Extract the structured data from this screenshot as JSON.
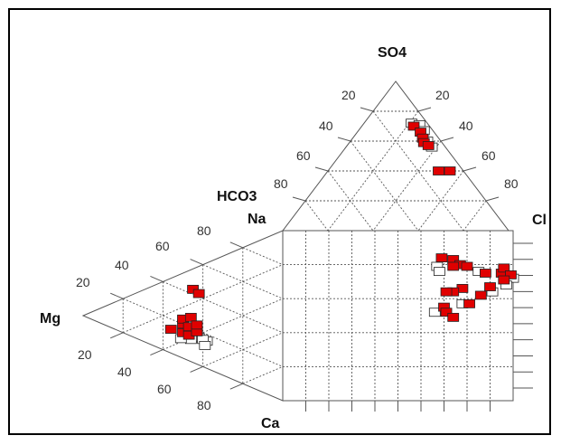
{
  "chart_data": {
    "type": "scatter",
    "subtype": "piper-diagram",
    "title": "",
    "axis_labels": {
      "top": "SO4",
      "upper_left": "HCO3",
      "mid_left": "Na",
      "right": "Cl",
      "left": "Mg",
      "bottom": "Ca"
    },
    "tick_labels": [
      "20",
      "40",
      "60",
      "80"
    ],
    "grid": true,
    "marker_colors": {
      "filled": "#e00000",
      "open": "#ffffff",
      "edge": "#222222"
    },
    "series": [
      {
        "marker": "filled-square",
        "points": [
          {
            "plot": "cation",
            "Ca": 30,
            "Mg": 56,
            "Na": 14
          },
          {
            "plot": "cation",
            "Ca": 30,
            "Mg": 50,
            "Na": 20
          },
          {
            "plot": "cation",
            "Ca": 35,
            "Mg": 50,
            "Na": 15
          },
          {
            "plot": "cation",
            "Ca": 27,
            "Mg": 50,
            "Na": 23
          },
          {
            "plot": "cation",
            "Ca": 38,
            "Mg": 47,
            "Na": 15
          },
          {
            "plot": "cation",
            "Ca": 33,
            "Mg": 47,
            "Na": 20
          },
          {
            "plot": "cation",
            "Ca": 28,
            "Mg": 46,
            "Na": 26
          },
          {
            "plot": "cation",
            "Ca": 38,
            "Mg": 43,
            "Na": 19
          },
          {
            "plot": "cation",
            "Ca": 34,
            "Mg": 43,
            "Na": 23
          },
          {
            "plot": "cation",
            "Ca": 12,
            "Mg": 45,
            "Na": 43
          },
          {
            "plot": "cation",
            "Ca": 16,
            "Mg": 42,
            "Na": 42
          },
          {
            "plot": "anion",
            "Cl": 23,
            "SO4": 70,
            "HCO3": 7
          },
          {
            "plot": "anion",
            "Cl": 28,
            "SO4": 66,
            "HCO3": 6
          },
          {
            "plot": "anion",
            "Cl": 31,
            "SO4": 62,
            "HCO3": 7
          },
          {
            "plot": "anion",
            "Cl": 33,
            "SO4": 59,
            "HCO3": 8
          },
          {
            "plot": "anion",
            "Cl": 36,
            "SO4": 57,
            "HCO3": 7
          },
          {
            "plot": "anion",
            "Cl": 54,
            "SO4": 40,
            "HCO3": 6
          },
          {
            "plot": "anion",
            "Cl": 49,
            "SO4": 40,
            "HCO3": 11
          },
          {
            "plot": "diamond",
            "Cl_SO4": 69,
            "Ca_Mg": 84
          },
          {
            "plot": "diamond",
            "Cl_SO4": 74,
            "Ca_Mg": 83
          },
          {
            "plot": "diamond",
            "Cl_SO4": 77,
            "Ca_Mg": 80
          },
          {
            "plot": "diamond",
            "Cl_SO4": 74,
            "Ca_Mg": 79
          },
          {
            "plot": "diamond",
            "Cl_SO4": 80,
            "Ca_Mg": 79
          },
          {
            "plot": "diamond",
            "Cl_SO4": 88,
            "Ca_Mg": 75
          },
          {
            "plot": "diamond",
            "Cl_SO4": 95,
            "Ca_Mg": 75
          },
          {
            "plot": "diamond",
            "Cl_SO4": 96,
            "Ca_Mg": 78
          },
          {
            "plot": "diamond",
            "Cl_SO4": 99,
            "Ca_Mg": 74
          },
          {
            "plot": "diamond",
            "Cl_SO4": 96,
            "Ca_Mg": 71
          },
          {
            "plot": "diamond",
            "Cl_SO4": 90,
            "Ca_Mg": 67
          },
          {
            "plot": "diamond",
            "Cl_SO4": 86,
            "Ca_Mg": 62
          },
          {
            "plot": "diamond",
            "Cl_SO4": 78,
            "Ca_Mg": 66
          },
          {
            "plot": "diamond",
            "Cl_SO4": 74,
            "Ca_Mg": 64
          },
          {
            "plot": "diamond",
            "Cl_SO4": 71,
            "Ca_Mg": 64
          },
          {
            "plot": "diamond",
            "Cl_SO4": 81,
            "Ca_Mg": 57
          },
          {
            "plot": "diamond",
            "Cl_SO4": 70,
            "Ca_Mg": 55
          },
          {
            "plot": "diamond",
            "Cl_SO4": 71,
            "Ca_Mg": 52
          },
          {
            "plot": "diamond",
            "Cl_SO4": 74,
            "Ca_Mg": 49
          }
        ]
      },
      {
        "marker": "open-square",
        "points": [
          {
            "plot": "cation",
            "Ca": 42,
            "Mg": 42,
            "Na": 16
          },
          {
            "plot": "cation",
            "Ca": 46,
            "Mg": 38,
            "Na": 16
          },
          {
            "plot": "cation",
            "Ca": 44,
            "Mg": 40,
            "Na": 16
          },
          {
            "plot": "cation",
            "Ca": 48,
            "Mg": 39,
            "Na": 13
          },
          {
            "plot": "cation",
            "Ca": 41,
            "Mg": 46,
            "Na": 13
          },
          {
            "plot": "cation",
            "Ca": 38,
            "Mg": 51,
            "Na": 11
          },
          {
            "plot": "anion",
            "Cl": 21,
            "SO4": 72,
            "HCO3": 7
          },
          {
            "plot": "anion",
            "Cl": 25,
            "SO4": 71,
            "HCO3": 4
          },
          {
            "plot": "anion",
            "Cl": 29,
            "SO4": 67,
            "HCO3": 4
          },
          {
            "plot": "anion",
            "Cl": 34,
            "SO4": 60,
            "HCO3": 6
          },
          {
            "plot": "anion",
            "Cl": 38,
            "SO4": 56,
            "HCO3": 6
          },
          {
            "plot": "diamond",
            "Cl_SO4": 67,
            "Ca_Mg": 79
          },
          {
            "plot": "diamond",
            "Cl_SO4": 68,
            "Ca_Mg": 76
          },
          {
            "plot": "diamond",
            "Cl_SO4": 85,
            "Ca_Mg": 76
          },
          {
            "plot": "diamond",
            "Cl_SO4": 100,
            "Ca_Mg": 72
          },
          {
            "plot": "diamond",
            "Cl_SO4": 97,
            "Ca_Mg": 68
          },
          {
            "plot": "diamond",
            "Cl_SO4": 91,
            "Ca_Mg": 64
          },
          {
            "plot": "diamond",
            "Cl_SO4": 78,
            "Ca_Mg": 57
          },
          {
            "plot": "diamond",
            "Cl_SO4": 66,
            "Ca_Mg": 52
          }
        ]
      }
    ]
  }
}
